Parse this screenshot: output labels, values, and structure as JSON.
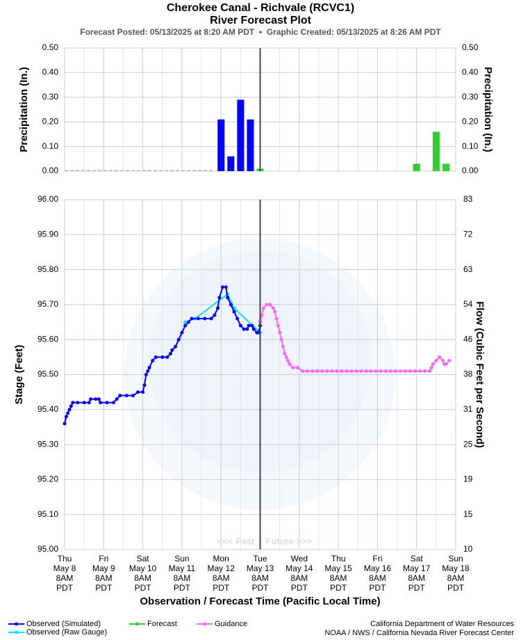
{
  "chart_data": [
    {
      "type": "bar",
      "title": "Cherokee Canal - Richvale (RCVC1)",
      "subtitle": "River Forecast Plot",
      "caption": "Forecast Posted: 05/13/2025 at 8:20 AM PDT  •  Graphic Created: 05/13/2025 at 8:26 AM PDT",
      "ylabel": "Precipitation (In.)",
      "y2label": "Precipitation (In.)",
      "xlim": [
        0,
        240
      ],
      "ylim": [
        0,
        0.5
      ],
      "yticks": [
        {
          "value": 0.5,
          "label": "0.50"
        },
        {
          "value": 0.4,
          "label": "0.40"
        },
        {
          "value": 0.3,
          "label": "0.30"
        },
        {
          "value": 0.2,
          "label": "0.20"
        },
        {
          "value": 0.1,
          "label": "0.10"
        },
        {
          "value": 0,
          "label": "0.00"
        }
      ],
      "grid": true,
      "series": [
        {
          "color": "#0000ff",
          "x": [
            96,
            102,
            108,
            114
          ],
          "values": [
            0.21,
            0.06,
            0.29,
            0.21
          ]
        },
        {
          "name": "Forecast",
          "color": "#33cc33",
          "x": [
            120,
            216,
            228,
            234
          ],
          "values": [
            0.01,
            0.03,
            0.16,
            0.03
          ]
        }
      ]
    },
    {
      "type": "line",
      "ylabel": "Stage (Feet)",
      "y2label": "Flow (Cubic Feet per Second)",
      "xlabel": "Observation / Forecast Time (Pacific Local Time)",
      "xlim": [
        0,
        240
      ],
      "ylim": [
        95,
        96
      ],
      "yticks": [
        {
          "value": 96,
          "label": "96.00"
        },
        {
          "value": 95.9,
          "label": "95.90"
        },
        {
          "value": 95.8,
          "label": "95.80"
        },
        {
          "value": 95.7,
          "label": "95.70"
        },
        {
          "value": 95.6,
          "label": "95.60"
        },
        {
          "value": 95.5,
          "label": "95.50"
        },
        {
          "value": 95.4,
          "label": "95.40"
        },
        {
          "value": 95.3,
          "label": "95.30"
        },
        {
          "value": 95.2,
          "label": "95.20"
        },
        {
          "value": 95.1,
          "label": "95.10"
        },
        {
          "value": 95,
          "label": "95.00"
        }
      ],
      "y2ticks": [
        83,
        72,
        63,
        54,
        46,
        38,
        31,
        25,
        19,
        15,
        10
      ],
      "xticks": [
        {
          "value": 0,
          "label": [
            "Thu",
            "May 8",
            "8AM",
            "PDT"
          ]
        },
        {
          "value": 24,
          "label": [
            "Fri",
            "May 9",
            "8AM",
            "PDT"
          ]
        },
        {
          "value": 48,
          "label": [
            "Sat",
            "May 10",
            "8AM",
            "PDT"
          ]
        },
        {
          "value": 72,
          "label": [
            "Sun",
            "May 11",
            "8AM",
            "PDT"
          ]
        },
        {
          "value": 96,
          "label": [
            "Mon",
            "May 12",
            "8AM",
            "PDT"
          ]
        },
        {
          "value": 120,
          "label": [
            "Tue",
            "May 13",
            "8AM",
            "PDT"
          ]
        },
        {
          "value": 144,
          "label": [
            "Wed",
            "May 14",
            "8AM",
            "PDT"
          ]
        },
        {
          "value": 168,
          "label": [
            "Thu",
            "May 15",
            "8AM",
            "PDT"
          ]
        },
        {
          "value": 192,
          "label": [
            "Fri",
            "May 16",
            "8AM",
            "PDT"
          ]
        },
        {
          "value": 216,
          "label": [
            "Sat",
            "May 17",
            "8AM",
            "PDT"
          ]
        },
        {
          "value": 240,
          "label": [
            "Sun",
            "May 18",
            "8AM",
            "PDT"
          ]
        }
      ],
      "grid": true,
      "now": 120,
      "annotations": [
        "<<< Past",
        "Future >>>"
      ],
      "series": [
        {
          "name": "Observed (Raw Gauge)",
          "color": "#00e5ee",
          "x": [
            74,
            80,
            100,
            104,
            120
          ],
          "values": [
            95.65,
            95.66,
            95.73,
            95.69,
            95.62
          ]
        },
        {
          "name": "Observed (Simulated)",
          "color": "#0000ff",
          "x": [
            0,
            1,
            2,
            3,
            4,
            5,
            8,
            12,
            15,
            16,
            19,
            21,
            22,
            26,
            30,
            32,
            34,
            38,
            42,
            45,
            48,
            49,
            50,
            51,
            52,
            54,
            56,
            60,
            63,
            65,
            66,
            68,
            70,
            72,
            74,
            76,
            78,
            82,
            86,
            90,
            92,
            94,
            95,
            97,
            99,
            100,
            102,
            104,
            106,
            108,
            110,
            112,
            113,
            115,
            116,
            118,
            119,
            120
          ],
          "values": [
            95.36,
            95.38,
            95.39,
            95.4,
            95.41,
            95.42,
            95.42,
            95.42,
            95.42,
            95.43,
            95.43,
            95.43,
            95.42,
            95.42,
            95.42,
            95.43,
            95.44,
            95.44,
            95.44,
            95.45,
            95.45,
            95.47,
            95.5,
            95.51,
            95.52,
            95.54,
            95.55,
            95.55,
            95.55,
            95.56,
            95.57,
            95.58,
            95.6,
            95.62,
            95.64,
            95.65,
            95.66,
            95.66,
            95.66,
            95.66,
            95.67,
            95.69,
            95.72,
            95.75,
            95.75,
            95.72,
            95.7,
            95.68,
            95.66,
            95.64,
            95.63,
            95.63,
            95.64,
            95.64,
            95.63,
            95.62,
            95.62,
            95.64
          ]
        },
        {
          "name": "Guidance",
          "color": "#ff66ff",
          "x": [
            120,
            121,
            122,
            124,
            126,
            128,
            129,
            130,
            131,
            132,
            133,
            134,
            135,
            136,
            137,
            138,
            140,
            143,
            146,
            149,
            152,
            155,
            158,
            161,
            164,
            167,
            170,
            173,
            176,
            179,
            182,
            185,
            188,
            191,
            194,
            197,
            200,
            203,
            206,
            209,
            212,
            215,
            218,
            221,
            224,
            225,
            226,
            228,
            230,
            232,
            233,
            234,
            236
          ],
          "values": [
            95.65,
            95.67,
            95.69,
            95.7,
            95.7,
            95.69,
            95.68,
            95.66,
            95.64,
            95.62,
            95.6,
            95.58,
            95.56,
            95.55,
            95.54,
            95.53,
            95.52,
            95.52,
            95.51,
            95.51,
            95.51,
            95.51,
            95.51,
            95.51,
            95.51,
            95.51,
            95.51,
            95.51,
            95.51,
            95.51,
            95.51,
            95.51,
            95.51,
            95.51,
            95.51,
            95.51,
            95.51,
            95.51,
            95.51,
            95.51,
            95.51,
            95.51,
            95.51,
            95.51,
            95.51,
            95.52,
            95.53,
            95.54,
            95.55,
            95.54,
            95.53,
            95.53,
            95.54
          ]
        }
      ]
    }
  ],
  "credits": [
    "California Department of Water Resources",
    "NOAA / NWS / California Nevada River Forecast Center"
  ]
}
